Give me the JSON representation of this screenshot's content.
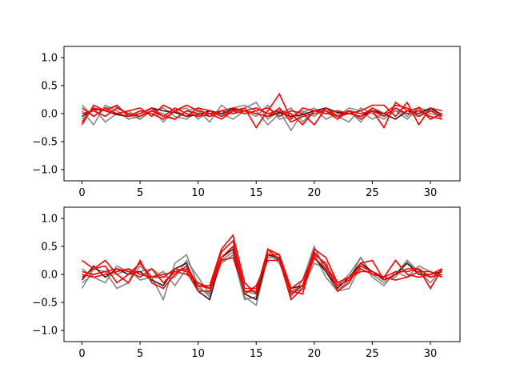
{
  "chart_data": [
    {
      "type": "line",
      "title": "",
      "xlabel": "",
      "ylabel": "",
      "xlim": [
        -1.55,
        32.55
      ],
      "ylim": [
        -1.2,
        1.2
      ],
      "xticks": [
        0,
        5,
        10,
        15,
        20,
        25,
        30
      ],
      "yticks": [
        -1.0,
        -0.5,
        0.0,
        0.5,
        1.0
      ],
      "xtick_labels": [
        "0",
        "5",
        "10",
        "15",
        "20",
        "25",
        "30"
      ],
      "ytick_labels": [
        "−1.0",
        "−0.5",
        "0.0",
        "0.5",
        "1.0"
      ],
      "grid": false,
      "legend": "none",
      "x": [
        0,
        1,
        2,
        3,
        4,
        5,
        6,
        7,
        8,
        9,
        10,
        11,
        12,
        13,
        14,
        15,
        16,
        17,
        18,
        19,
        20,
        21,
        22,
        23,
        24,
        25,
        26,
        27,
        28,
        29,
        30,
        31
      ],
      "series": [
        {
          "color": "#7f7f7f",
          "values": [
            0.15,
            -0.05,
            0.1,
            0.12,
            -0.02,
            -0.1,
            0.05,
            0.1,
            -0.05,
            -0.1,
            0.05,
            -0.15,
            0.15,
            0.0,
            0.1,
            0.2,
            -0.1,
            0.05,
            -0.3,
            0.02,
            0.1,
            -0.1,
            0.0,
            0.05,
            -0.15,
            0.1,
            -0.05,
            0.1,
            -0.05,
            0.12,
            0.0,
            -0.05
          ]
        },
        {
          "color": "#7f7f7f",
          "values": [
            0.05,
            -0.2,
            0.15,
            0.05,
            -0.1,
            -0.05,
            0.1,
            -0.15,
            0.05,
            0.1,
            -0.1,
            0.05,
            -0.05,
            0.1,
            0.15,
            0.05,
            -0.2,
            0.0,
            0.1,
            -0.15,
            0.05,
            0.0,
            -0.05,
            0.1,
            0.05,
            -0.1,
            0.0,
            0.05,
            -0.1,
            0.1,
            0.05,
            0.0
          ]
        },
        {
          "color": "#7f7f7f",
          "values": [
            -0.1,
            0.1,
            -0.15,
            0.0,
            0.05,
            -0.1,
            0.05,
            0.0,
            -0.1,
            0.05,
            0.1,
            -0.05,
            0.0,
            -0.1,
            0.05,
            -0.05,
            0.15,
            -0.1,
            -0.05,
            0.05,
            -0.05,
            0.1,
            -0.05,
            -0.15,
            0.1,
            0.0,
            -0.1,
            0.05,
            0.0,
            -0.05,
            0.1,
            -0.1
          ]
        },
        {
          "color": "#3a1414",
          "values": [
            -0.05,
            0.08,
            0.05,
            -0.02,
            -0.05,
            0.0,
            0.1,
            0.05,
            0.02,
            -0.05,
            -0.02,
            0.05,
            0.0,
            0.08,
            0.05,
            0.0,
            -0.05,
            0.02,
            -0.05,
            -0.02,
            0.05,
            0.1,
            0.02,
            0.0,
            -0.05,
            0.05,
            0.0,
            -0.1,
            0.05,
            0.0,
            0.1,
            -0.02
          ]
        },
        {
          "color": "#ff0000",
          "values": [
            -0.2,
            0.15,
            0.05,
            0.15,
            -0.05,
            0.05,
            0.0,
            -0.1,
            0.05,
            0.15,
            0.05,
            0.0,
            -0.1,
            0.05,
            0.1,
            -0.25,
            0.05,
            0.35,
            -0.1,
            0.1,
            0.05,
            0.05,
            -0.05,
            0.0,
            0.05,
            0.15,
            0.15,
            -0.05,
            0.2,
            -0.2,
            0.1,
            0.05
          ]
        },
        {
          "color": "#ff0000",
          "values": [
            0.1,
            -0.05,
            0.1,
            0.0,
            0.05,
            0.1,
            -0.05,
            0.15,
            0.05,
            -0.05,
            0.1,
            0.05,
            -0.05,
            0.05,
            0.0,
            0.05,
            0.1,
            -0.05,
            0.05,
            0.0,
            -0.2,
            0.1,
            -0.05,
            0.05,
            -0.1,
            0.05,
            -0.25,
            0.2,
            0.05,
            0.1,
            -0.1,
            0.0
          ]
        },
        {
          "color": "#ff0000",
          "values": [
            0.0,
            0.05,
            -0.05,
            0.1,
            0.0,
            -0.05,
            0.05,
            -0.05,
            0.1,
            0.0,
            -0.05,
            0.0,
            0.05,
            0.0,
            0.05,
            0.1,
            0.0,
            0.05,
            0.0,
            -0.2,
            0.05,
            0.0,
            0.05,
            0.0,
            -0.05,
            0.1,
            0.0,
            0.15,
            0.1,
            -0.05,
            0.05,
            -0.05
          ]
        },
        {
          "color": "#ff0000",
          "values": [
            -0.15,
            0.1,
            0.05,
            0.0,
            -0.05,
            0.0,
            0.1,
            -0.05,
            -0.1,
            0.05,
            0.0,
            -0.05,
            0.05,
            0.1,
            0.05,
            0.0,
            -0.05,
            0.1,
            -0.15,
            -0.05,
            0.0,
            0.05,
            -0.1,
            0.05,
            0.0,
            0.05,
            -0.05,
            0.1,
            0.0,
            0.05,
            -0.05,
            -0.1
          ]
        }
      ]
    },
    {
      "type": "line",
      "title": "",
      "xlabel": "",
      "ylabel": "",
      "xlim": [
        -1.55,
        32.55
      ],
      "ylim": [
        -1.2,
        1.2
      ],
      "xticks": [
        0,
        5,
        10,
        15,
        20,
        25,
        30
      ],
      "yticks": [
        -1.0,
        -0.5,
        0.0,
        0.5,
        1.0
      ],
      "xtick_labels": [
        "0",
        "5",
        "10",
        "15",
        "20",
        "25",
        "30"
      ],
      "ytick_labels": [
        "−1.0",
        "−0.5",
        "0.0",
        "0.5",
        "1.0"
      ],
      "grid": false,
      "legend": "none",
      "x": [
        0,
        1,
        2,
        3,
        4,
        5,
        6,
        7,
        8,
        9,
        10,
        11,
        12,
        13,
        14,
        15,
        16,
        17,
        18,
        19,
        20,
        21,
        22,
        23,
        24,
        25,
        26,
        27,
        28,
        29,
        30,
        31
      ],
      "series": [
        {
          "color": "#7f7f7f",
          "values": [
            -0.25,
            0.1,
            0.05,
            -0.25,
            -0.15,
            0.15,
            -0.05,
            -0.45,
            0.2,
            0.35,
            -0.2,
            -0.4,
            0.25,
            0.4,
            -0.4,
            -0.55,
            0.3,
            0.3,
            -0.4,
            -0.1,
            0.5,
            0.05,
            -0.3,
            -0.1,
            0.3,
            0.0,
            -0.15,
            0.0,
            0.25,
            0.05,
            -0.15,
            0.1
          ]
        },
        {
          "color": "#7f7f7f",
          "values": [
            0.1,
            -0.05,
            -0.15,
            0.15,
            0.05,
            0.05,
            0.1,
            -0.05,
            -0.05,
            0.25,
            -0.05,
            -0.35,
            0.3,
            0.5,
            -0.3,
            -0.35,
            0.35,
            0.25,
            -0.35,
            -0.25,
            0.2,
            0.1,
            -0.2,
            0.0,
            0.3,
            -0.05,
            -0.2,
            0.05,
            -0.05,
            0.15,
            0.05,
            -0.05
          ]
        },
        {
          "color": "#7f7f7f",
          "values": [
            -0.15,
            0.0,
            0.05,
            0.0,
            0.1,
            -0.1,
            -0.05,
            0.05,
            -0.2,
            0.1,
            -0.25,
            -0.35,
            0.2,
            0.35,
            -0.45,
            -0.4,
            0.4,
            0.2,
            -0.3,
            -0.2,
            0.35,
            -0.05,
            -0.3,
            -0.25,
            0.15,
            0.05,
            -0.1,
            -0.05,
            0.25,
            0.0,
            -0.05,
            0.05
          ]
        },
        {
          "color": "#3a1414",
          "values": [
            -0.1,
            0.15,
            -0.05,
            0.1,
            0.0,
            0.05,
            -0.1,
            -0.2,
            0.1,
            0.2,
            -0.3,
            -0.45,
            0.3,
            0.45,
            -0.35,
            -0.45,
            0.35,
            0.3,
            -0.25,
            -0.2,
            0.3,
            0.05,
            -0.25,
            -0.05,
            0.2,
            0.05,
            -0.1,
            0.0,
            0.2,
            0.0,
            0.0,
            0.05
          ]
        },
        {
          "color": "#ff0000",
          "values": [
            0.25,
            0.1,
            0.25,
            0.0,
            -0.15,
            0.25,
            -0.15,
            -0.25,
            0.0,
            0.15,
            -0.2,
            -0.2,
            0.45,
            0.7,
            -0.15,
            -0.35,
            0.45,
            0.35,
            -0.35,
            -0.2,
            0.45,
            0.3,
            -0.15,
            -0.05,
            0.05,
            0.05,
            -0.05,
            0.05,
            0.05,
            0.1,
            -0.05,
            0.0
          ]
        },
        {
          "color": "#ff0000",
          "values": [
            0.05,
            0.0,
            0.05,
            0.1,
            0.05,
            -0.05,
            0.1,
            -0.15,
            0.05,
            0.0,
            -0.15,
            -0.25,
            0.4,
            0.6,
            -0.25,
            -0.25,
            0.35,
            0.35,
            -0.25,
            -0.1,
            0.35,
            0.2,
            -0.3,
            -0.15,
            0.2,
            0.25,
            -0.1,
            0.0,
            0.1,
            0.1,
            -0.25,
            0.1
          ]
        },
        {
          "color": "#ff0000",
          "values": [
            -0.05,
            0.1,
            0.15,
            -0.15,
            0.0,
            0.2,
            -0.05,
            -0.05,
            0.1,
            0.05,
            -0.3,
            -0.3,
            0.25,
            0.3,
            -0.3,
            -0.3,
            0.45,
            0.25,
            -0.45,
            -0.25,
            0.3,
            0.1,
            -0.2,
            -0.1,
            0.1,
            0.0,
            -0.05,
            0.25,
            0.0,
            -0.05,
            0.0,
            0.1
          ]
        },
        {
          "color": "#ff0000",
          "values": [
            0.0,
            -0.05,
            0.0,
            0.05,
            0.1,
            0.0,
            -0.05,
            0.0,
            0.05,
            0.1,
            -0.2,
            -0.25,
            0.3,
            0.5,
            -0.35,
            -0.2,
            0.25,
            0.25,
            -0.3,
            -0.35,
            0.4,
            0.15,
            -0.15,
            -0.05,
            0.15,
            0.05,
            -0.05,
            -0.1,
            -0.05,
            0.05,
            0.05,
            -0.05
          ]
        }
      ]
    }
  ]
}
